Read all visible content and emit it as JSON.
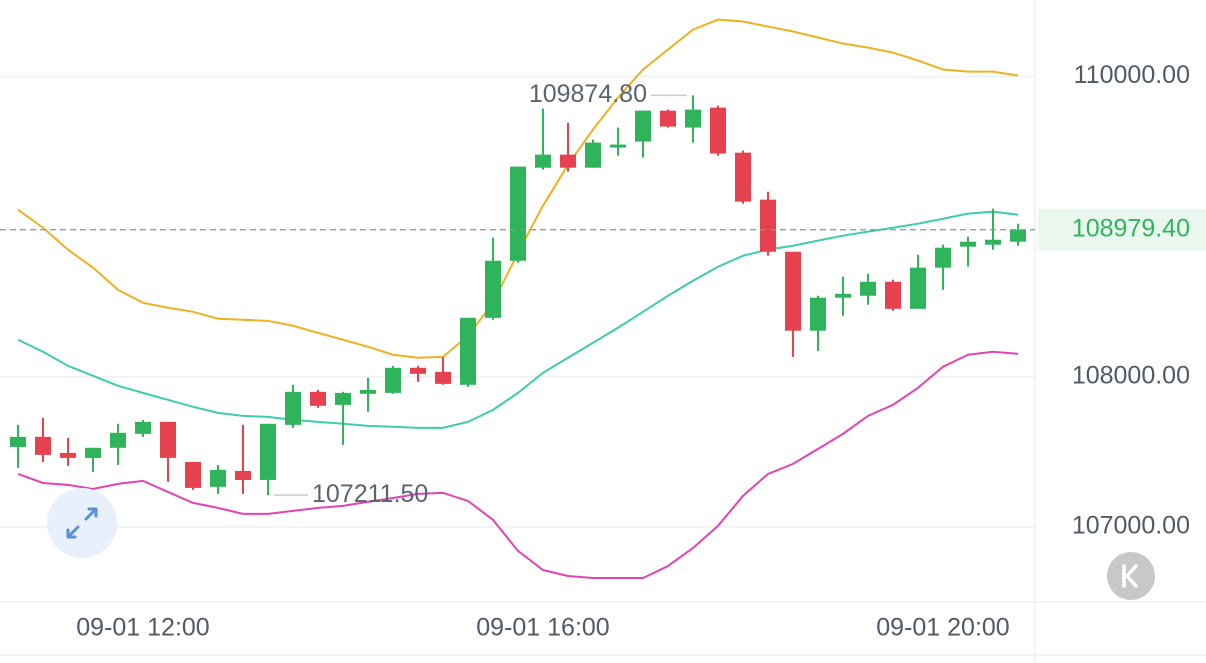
{
  "chart_data": {
    "type": "candlestick",
    "categories": [
      null,
      null,
      null,
      null,
      null,
      "09-01 12:00",
      null,
      null,
      null,
      null,
      null,
      null,
      null,
      null,
      null,
      null,
      null,
      null,
      null,
      null,
      null,
      "09-01 16:00",
      null,
      null,
      null,
      null,
      null,
      null,
      null,
      null,
      null,
      null,
      null,
      null,
      null,
      null,
      null,
      "09-01 20:00",
      null,
      null,
      null
    ],
    "open": [
      107533,
      107600,
      107493,
      107460,
      107527,
      107620,
      107700,
      107433,
      107267,
      107373,
      107313,
      107680,
      107900,
      107813,
      107887,
      107893,
      108060,
      108033,
      107947,
      108393,
      108773,
      109393,
      109480,
      109393,
      109527,
      109567,
      109773,
      109660,
      109793,
      109493,
      109180,
      108833,
      108307,
      108527,
      108540,
      108633,
      108453,
      108727,
      108867,
      108880,
      108900
    ],
    "high": [
      107680,
      107727,
      107593,
      107527,
      107687,
      107713,
      107700,
      107433,
      107413,
      107680,
      107687,
      107947,
      107913,
      107900,
      107993,
      108073,
      108073,
      108133,
      108393,
      108927,
      109400,
      109787,
      109693,
      109580,
      109660,
      109773,
      109780,
      109874.8,
      109807,
      109507,
      109233,
      108833,
      108540,
      108667,
      108687,
      108647,
      108813,
      108880,
      108933,
      109120,
      109020
    ],
    "low": [
      107393,
      107433,
      107407,
      107367,
      107413,
      107600,
      107300,
      107247,
      107220,
      107220,
      107211.5,
      107660,
      107793,
      107547,
      107767,
      107887,
      107967,
      107947,
      107933,
      108380,
      108760,
      109380,
      109367,
      109393,
      109473,
      109460,
      109660,
      109560,
      109473,
      109153,
      108807,
      108133,
      108173,
      108407,
      108480,
      108440,
      108453,
      108580,
      108733,
      108847,
      108873
    ],
    "close": [
      107600,
      107480,
      107460,
      107527,
      107627,
      107700,
      107460,
      107260,
      107380,
      107313,
      107687,
      107900,
      107807,
      107893,
      107913,
      108060,
      108020,
      107953,
      108393,
      108773,
      109400,
      109480,
      109393,
      109560,
      109547,
      109773,
      109667,
      109780,
      109487,
      109167,
      108833,
      108307,
      108527,
      108553,
      108633,
      108453,
      108727,
      108860,
      108900,
      108913,
      108979.4
    ],
    "up_color": "#2fb45c",
    "down_color": "#e5414e",
    "bands": [
      {
        "color": "#f0b022",
        "values": [
          109113,
          108993,
          108847,
          108727,
          108580,
          108493,
          108460,
          108433,
          108387,
          108380,
          108373,
          108340,
          108293,
          108247,
          108200,
          108147,
          108127,
          108133,
          108273,
          108493,
          108827,
          109140,
          109413,
          109647,
          109860,
          110047,
          110180,
          110313,
          110380,
          110367,
          110333,
          110300,
          110260,
          110220,
          110193,
          110160,
          110107,
          110047,
          110033,
          110033,
          110007
        ]
      },
      {
        "color": "#3dcdae",
        "values": [
          108247,
          108167,
          108073,
          108007,
          107940,
          107893,
          107847,
          107800,
          107760,
          107740,
          107733,
          107713,
          107700,
          107687,
          107673,
          107667,
          107660,
          107660,
          107700,
          107780,
          107893,
          108027,
          108127,
          108227,
          108327,
          108433,
          108540,
          108640,
          108733,
          108807,
          108847,
          108873,
          108907,
          108940,
          108967,
          108993,
          109020,
          109053,
          109087,
          109100,
          109080
        ]
      },
      {
        "color": "#e244b4",
        "values": [
          107353,
          107293,
          107280,
          107253,
          107287,
          107307,
          107233,
          107160,
          107127,
          107087,
          107087,
          107107,
          107127,
          107140,
          107167,
          107193,
          107220,
          107227,
          107173,
          107047,
          106840,
          106713,
          106673,
          106660,
          106660,
          106660,
          106740,
          106860,
          107007,
          107207,
          107353,
          107420,
          107520,
          107620,
          107740,
          107813,
          107927,
          108067,
          108147,
          108167,
          108153
        ]
      }
    ],
    "ylim": [
      106500,
      110510
    ],
    "yticks": [
      {
        "value": 107000,
        "label": "107000.00"
      },
      {
        "value": 108000,
        "label": "108000.00"
      },
      {
        "value": 110000,
        "label": "110000.00"
      }
    ],
    "grid": true,
    "max_label": {
      "value": 109874.8,
      "label": "109874.80"
    },
    "min_label": {
      "value": 107211.5,
      "label": "107211.50"
    },
    "last_price": {
      "value": 108979.4,
      "label": "108979.40",
      "color": "#2fb45c"
    }
  }
}
